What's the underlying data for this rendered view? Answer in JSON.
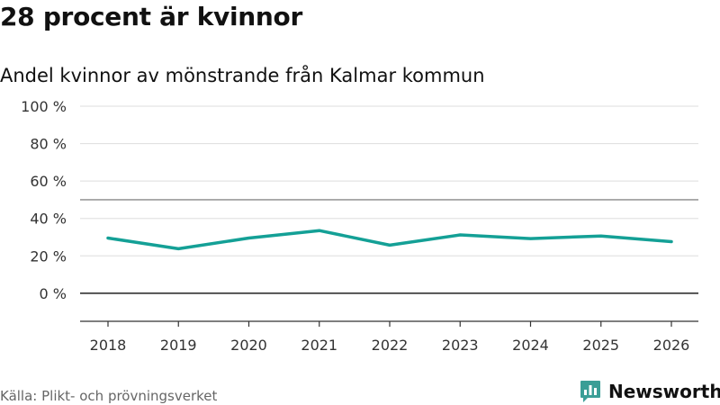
{
  "title": "28 procent är kvinnor",
  "subtitle": "Andel kvinnor av mönstrande från Kalmar kommun",
  "source": "Källa: Plikt- och prövningsverket",
  "brand": {
    "name": "Newsworthy",
    "icon": "newsworthy-logo-icon",
    "color": "#3a9e96"
  },
  "colors": {
    "line": "#14a096",
    "grid": "#dddddd",
    "reference": "#888888",
    "baseline": "#333333",
    "axis": "#333333"
  },
  "chart_data": {
    "type": "line",
    "title": "28 procent är kvinnor",
    "subtitle": "Andel kvinnor av mönstrande från Kalmar kommun",
    "xlabel": "",
    "ylabel": "",
    "ylim": [
      -15,
      100
    ],
    "y_ticks": [
      {
        "value": 0,
        "label": "0 %"
      },
      {
        "value": 20,
        "label": "20 %"
      },
      {
        "value": 40,
        "label": "40 %"
      },
      {
        "value": 60,
        "label": "60 %"
      },
      {
        "value": 80,
        "label": "80 %"
      },
      {
        "value": 100,
        "label": "100 %"
      }
    ],
    "reference_line": 50,
    "grid": true,
    "legend": "none",
    "categories": [
      "2018",
      "2019",
      "2020",
      "2021",
      "2022",
      "2023",
      "2024",
      "2025",
      "2026"
    ],
    "series": [
      {
        "name": "Andel kvinnor",
        "values": [
          29.5,
          23.8,
          29.5,
          33.5,
          25.7,
          31.2,
          29.2,
          30.6,
          27.6
        ]
      }
    ]
  }
}
